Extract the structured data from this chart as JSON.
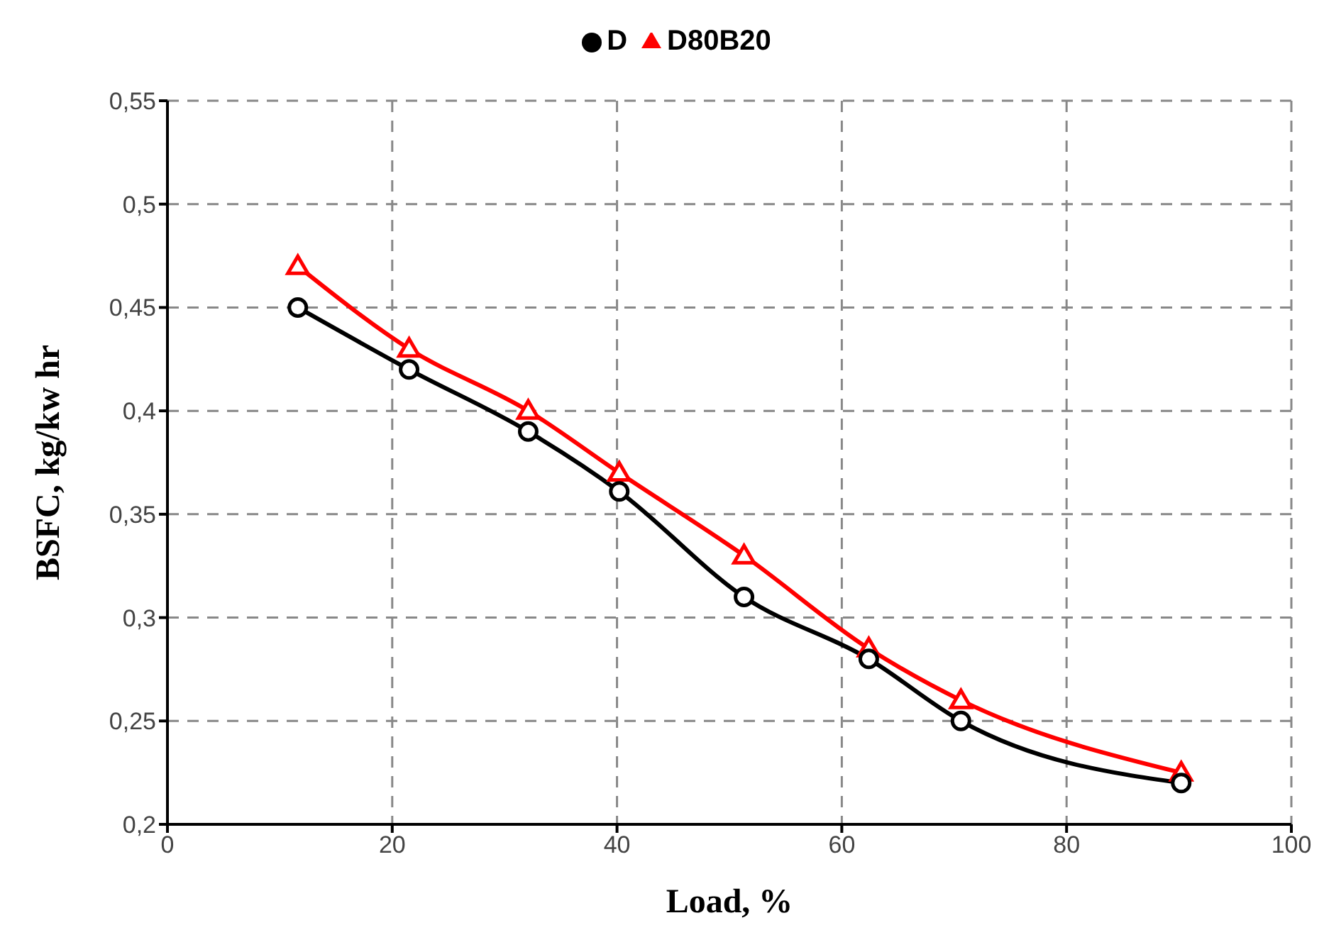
{
  "chart_data": {
    "type": "line",
    "xlabel": "Load, %",
    "ylabel": "BSFC, kg/kw hr",
    "x": [
      11.6,
      21.5,
      32.1,
      40.2,
      51.3,
      62.4,
      70.6,
      90.2
    ],
    "series": [
      {
        "name": "D",
        "color": "#000000",
        "marker": "circle",
        "values": [
          0.45,
          0.42,
          0.39,
          0.361,
          0.31,
          0.28,
          0.25,
          0.22
        ]
      },
      {
        "name": "D80B20",
        "color": "#ff0000",
        "marker": "triangle",
        "values": [
          0.47,
          0.43,
          0.4,
          0.37,
          0.33,
          0.285,
          0.26,
          0.225
        ]
      }
    ],
    "xlim": [
      0,
      100
    ],
    "xticks": [
      0,
      20,
      40,
      60,
      80,
      100
    ],
    "ylim": [
      0.2,
      0.55
    ],
    "yticks": [
      {
        "value": 0.2,
        "label": "0,2"
      },
      {
        "value": 0.25,
        "label": "0,25"
      },
      {
        "value": 0.3,
        "label": "0,3"
      },
      {
        "value": 0.35,
        "label": "0,35"
      },
      {
        "value": 0.4,
        "label": "0,4"
      },
      {
        "value": 0.45,
        "label": "0,45"
      },
      {
        "value": 0.5,
        "label": "0,5"
      },
      {
        "value": 0.55,
        "label": "0,55"
      }
    ],
    "grid": true,
    "legend": "top",
    "line_style": "solid"
  }
}
